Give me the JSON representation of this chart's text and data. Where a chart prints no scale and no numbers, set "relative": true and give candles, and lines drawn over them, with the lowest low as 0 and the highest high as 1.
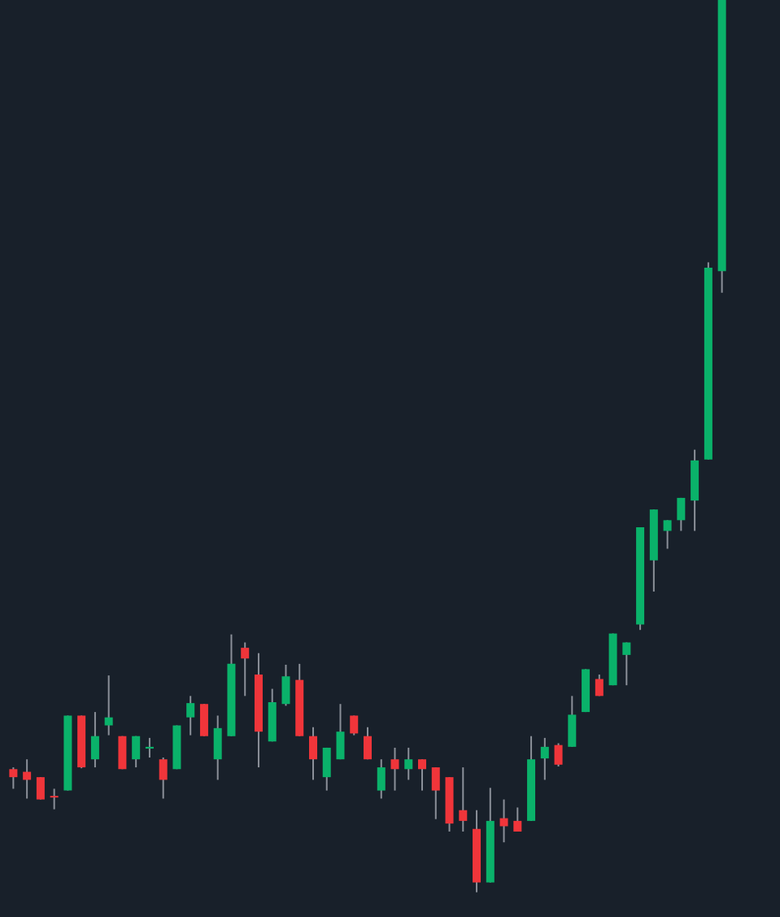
{
  "chart_data": {
    "type": "candlestick",
    "relative": true,
    "grid": false,
    "legend": false,
    "categories": [
      null,
      null,
      null,
      null,
      null,
      null,
      null,
      null,
      null,
      null,
      null,
      null,
      null,
      null,
      null,
      null,
      null,
      null,
      null,
      null,
      null,
      null,
      null,
      null,
      null,
      null,
      null,
      null,
      null,
      null,
      null,
      null,
      null,
      null,
      null,
      null,
      null,
      null,
      null,
      null,
      null,
      null,
      null,
      null,
      null,
      null,
      null,
      null,
      null,
      null,
      null,
      null,
      null
    ],
    "ohlc": [
      [
        0.138,
        0.14,
        0.116,
        0.129
      ],
      [
        0.135,
        0.149,
        0.105,
        0.126
      ],
      [
        0.129,
        0.129,
        0.104,
        0.104
      ],
      [
        0.107,
        0.116,
        0.093,
        0.108
      ],
      [
        0.114,
        0.198,
        0.114,
        0.198
      ],
      [
        0.198,
        0.198,
        0.139,
        0.14
      ],
      [
        0.149,
        0.202,
        0.14,
        0.175
      ],
      [
        0.187,
        0.243,
        0.176,
        0.196
      ],
      [
        0.175,
        0.175,
        0.138,
        0.138
      ],
      [
        0.149,
        0.175,
        0.14,
        0.175
      ],
      [
        0.161,
        0.173,
        0.151,
        0.163
      ],
      [
        0.149,
        0.151,
        0.105,
        0.126
      ],
      [
        0.138,
        0.187,
        0.138,
        0.187
      ],
      [
        0.196,
        0.22,
        0.176,
        0.212
      ],
      [
        0.211,
        0.211,
        0.175,
        0.175
      ],
      [
        0.149,
        0.198,
        0.126,
        0.184
      ],
      [
        0.175,
        0.289,
        0.175,
        0.256
      ],
      [
        0.274,
        0.28,
        0.22,
        0.262
      ],
      [
        0.244,
        0.268,
        0.14,
        0.18
      ],
      [
        0.169,
        0.228,
        0.169,
        0.213
      ],
      [
        0.211,
        0.255,
        0.209,
        0.242
      ],
      [
        0.238,
        0.256,
        0.175,
        0.175
      ],
      [
        0.175,
        0.185,
        0.126,
        0.149
      ],
      [
        0.129,
        0.162,
        0.114,
        0.162
      ],
      [
        0.149,
        0.211,
        0.149,
        0.18
      ],
      [
        0.198,
        0.198,
        0.176,
        0.178
      ],
      [
        0.175,
        0.185,
        0.149,
        0.149
      ],
      [
        0.114,
        0.149,
        0.105,
        0.14
      ],
      [
        0.149,
        0.162,
        0.114,
        0.138
      ],
      [
        0.138,
        0.162,
        0.126,
        0.149
      ],
      [
        0.149,
        0.149,
        0.114,
        0.138
      ],
      [
        0.14,
        0.14,
        0.082,
        0.114
      ],
      [
        0.129,
        0.129,
        0.068,
        0.077
      ],
      [
        0.092,
        0.14,
        0.068,
        0.08
      ],
      [
        0.071,
        0.092,
        0,
        0.011
      ],
      [
        0.011,
        0.117,
        0.011,
        0.08
      ],
      [
        0.083,
        0.104,
        0.056,
        0.074
      ],
      [
        0.08,
        0.095,
        0.068,
        0.068
      ],
      [
        0.08,
        0.175,
        0.08,
        0.149
      ],
      [
        0.15,
        0.173,
        0.126,
        0.163
      ],
      [
        0.165,
        0.167,
        0.141,
        0.143
      ],
      [
        0.163,
        0.22,
        0.163,
        0.199
      ],
      [
        0.202,
        0.25,
        0.202,
        0.25
      ],
      [
        0.239,
        0.244,
        0.22,
        0.22
      ],
      [
        0.232,
        0.29,
        0.232,
        0.29
      ],
      [
        0.266,
        0.28,
        0.232,
        0.28
      ],
      [
        0.3,
        0.409,
        0.294,
        0.409
      ],
      [
        0.372,
        0.429,
        0.337,
        0.429
      ],
      [
        0.405,
        0.417,
        0.385,
        0.417
      ],
      [
        0.417,
        0.442,
        0.405,
        0.442
      ],
      [
        0.439,
        0.496,
        0.405,
        0.484
      ],
      [
        0.485,
        0.706,
        0.485,
        0.7
      ],
      [
        0.696,
        1,
        0.672,
        1
      ]
    ],
    "colors": [
      "#f0353a",
      "#f0353a",
      "#f0353a",
      "#f0353a",
      "#0ab26a",
      "#f0353a",
      "#0ab26a",
      "#0ab26a",
      "#f0353a",
      "#0ab26a",
      "#0ab26a",
      "#f0353a",
      "#0ab26a",
      "#0ab26a",
      "#f0353a",
      "#0ab26a",
      "#0ab26a",
      "#f0353a",
      "#f0353a",
      "#0ab26a",
      "#0ab26a",
      "#f0353a",
      "#f0353a",
      "#0ab26a",
      "#0ab26a",
      "#f0353a",
      "#f0353a",
      "#0ab26a",
      "#f0353a",
      "#0ab26a",
      "#f0353a",
      "#f0353a",
      "#f0353a",
      "#f0353a",
      "#f0353a",
      "#0ab26a",
      "#f0353a",
      "#f0353a",
      "#0ab26a",
      "#0ab26a",
      "#f0353a",
      "#0ab26a",
      "#0ab26a",
      "#f0353a",
      "#0ab26a",
      "#0ab26a",
      "#0ab26a",
      "#0ab26a",
      "#0ab26a",
      "#0ab26a",
      "#0ab26a",
      "#0ab26a",
      "#0ab26a"
    ]
  }
}
